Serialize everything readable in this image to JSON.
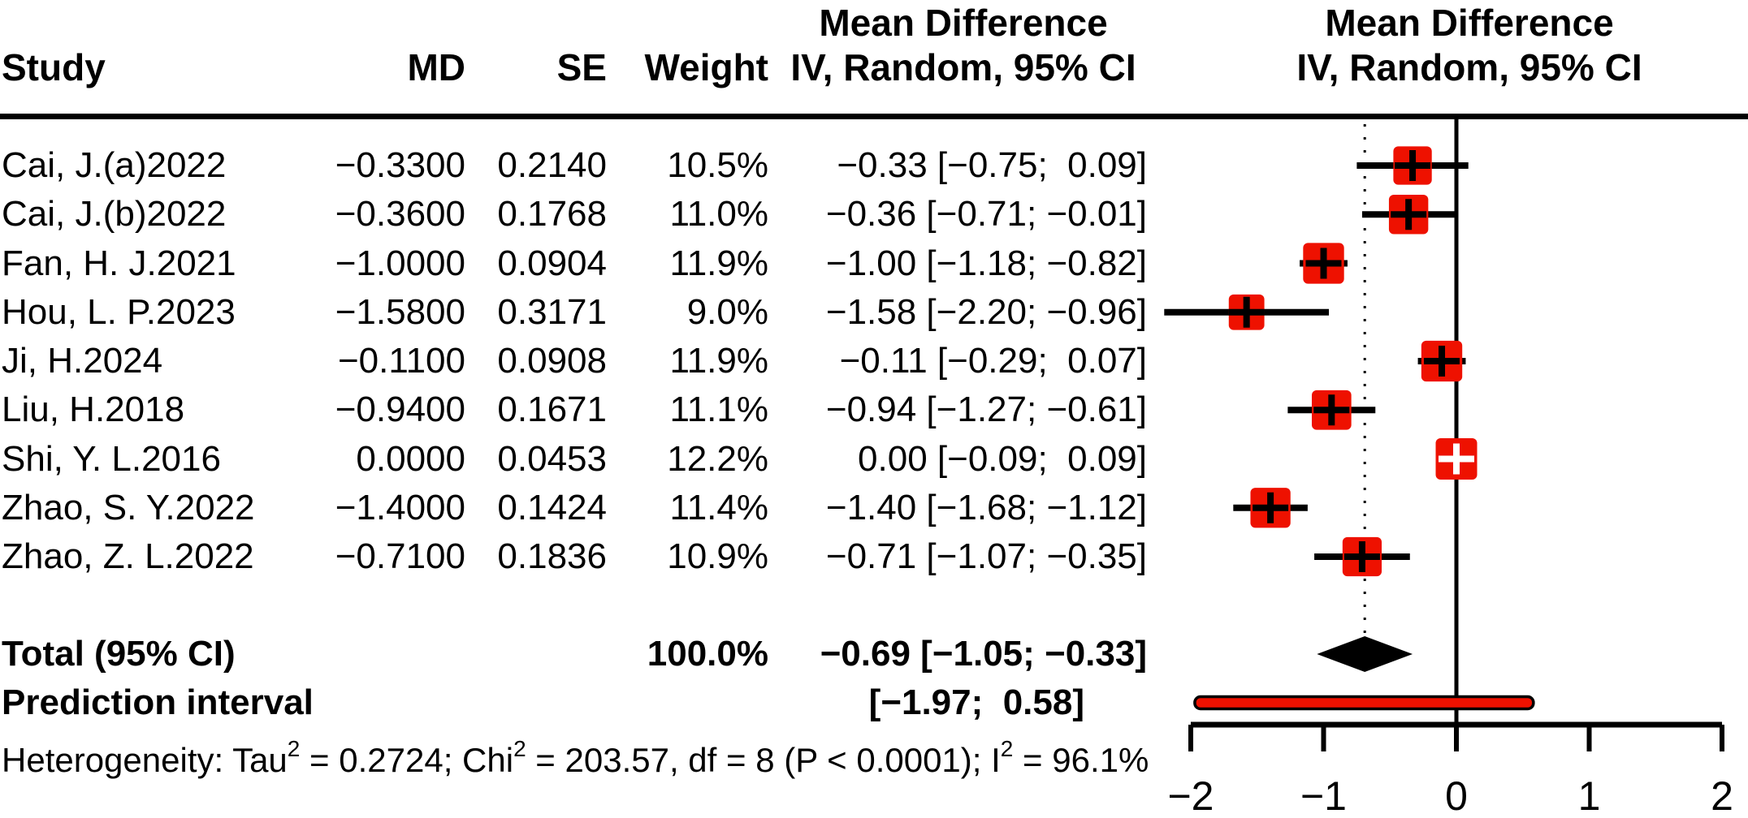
{
  "columns": {
    "study": "Study",
    "md": "MD",
    "se": "SE",
    "weight": "Weight"
  },
  "ci_header": {
    "line1": "Mean Difference",
    "line2": "IV, Random, 95% CI"
  },
  "plot_header": {
    "line1": "Mean Difference",
    "line2": "IV, Random, 95% CI"
  },
  "chart_data": {
    "type": "forest",
    "effect_measure": "Mean Difference",
    "model": "IV, Random, 95% CI",
    "studies": [
      {
        "study": "Cai, J.(a)2022",
        "md_text": "−0.3300",
        "se_text": "0.2140",
        "weight_text": "10.5%",
        "ci_text": "−0.33 [−0.75;  0.09]",
        "md": -0.33,
        "lo": -0.75,
        "hi": 0.09,
        "weight_pct": 10.5,
        "marker_color": "#000000"
      },
      {
        "study": "Cai, J.(b)2022",
        "md_text": "−0.3600",
        "se_text": "0.1768",
        "weight_text": "11.0%",
        "ci_text": "−0.36 [−0.71; −0.01]",
        "md": -0.36,
        "lo": -0.71,
        "hi": -0.01,
        "weight_pct": 11.0,
        "marker_color": "#000000"
      },
      {
        "study": "Fan, H. J.2021",
        "md_text": "−1.0000",
        "se_text": "0.0904",
        "weight_text": "11.9%",
        "ci_text": "−1.00 [−1.18; −0.82]",
        "md": -1.0,
        "lo": -1.18,
        "hi": -0.82,
        "weight_pct": 11.9,
        "marker_color": "#000000"
      },
      {
        "study": "Hou, L. P.2023",
        "md_text": "−1.5800",
        "se_text": "0.3171",
        "weight_text": "9.0%",
        "ci_text": "−1.58 [−2.20; −0.96]",
        "md": -1.58,
        "lo": -2.2,
        "hi": -0.96,
        "weight_pct": 9.0,
        "marker_color": "#000000"
      },
      {
        "study": "Ji, H.2024",
        "md_text": "−0.1100",
        "se_text": "0.0908",
        "weight_text": "11.9%",
        "ci_text": "−0.11 [−0.29;  0.07]",
        "md": -0.11,
        "lo": -0.29,
        "hi": 0.07,
        "weight_pct": 11.9,
        "marker_color": "#000000"
      },
      {
        "study": "Liu, H.2018",
        "md_text": "−0.9400",
        "se_text": "0.1671",
        "weight_text": "11.1%",
        "ci_text": "−0.94 [−1.27; −0.61]",
        "md": -0.94,
        "lo": -1.27,
        "hi": -0.61,
        "weight_pct": 11.1,
        "marker_color": "#000000"
      },
      {
        "study": "Shi, Y. L.2016",
        "md_text": "0.0000",
        "se_text": "0.0453",
        "weight_text": "12.2%",
        "ci_text": " 0.00 [−0.09;  0.09]",
        "md": 0.0,
        "lo": -0.09,
        "hi": 0.09,
        "weight_pct": 12.2,
        "marker_color": "#FFFFFF"
      },
      {
        "study": "Zhao, S. Y.2022",
        "md_text": "−1.4000",
        "se_text": "0.1424",
        "weight_text": "11.4%",
        "ci_text": "−1.40 [−1.68; −1.12]",
        "md": -1.4,
        "lo": -1.68,
        "hi": -1.12,
        "weight_pct": 11.4,
        "marker_color": "#000000"
      },
      {
        "study": "Zhao, Z. L.2022",
        "md_text": "−0.7100",
        "se_text": "0.1836",
        "weight_text": "10.9%",
        "ci_text": "−0.71 [−1.07; −0.35]",
        "md": -0.71,
        "lo": -1.07,
        "hi": -0.35,
        "weight_pct": 10.9,
        "marker_color": "#000000"
      }
    ],
    "total": {
      "label": "Total (95% CI)",
      "weight_text": "100.0%",
      "ci_text": "−0.69 [−1.05; −0.33]",
      "md": -0.69,
      "lo": -1.05,
      "hi": -0.33
    },
    "prediction": {
      "label": "Prediction interval",
      "ci_text": "[−1.97;  0.58]",
      "lo": -1.97,
      "hi": 0.58
    },
    "heterogeneity_segments": [
      {
        "text": "Heterogeneity: Tau"
      },
      {
        "sup": "2"
      },
      {
        "text": " = 0.2724; Chi"
      },
      {
        "sup": "2"
      },
      {
        "text": " = 203.57, df = 8 (P < 0.0001); I"
      },
      {
        "sup": "2"
      },
      {
        "text": " = 96.1%"
      }
    ],
    "axis": {
      "xmin": -2,
      "xmax": 2,
      "tick_values": [
        -2,
        -1,
        0,
        1,
        2
      ],
      "tick_labels": [
        "−2",
        "−1",
        "0",
        "1",
        "2"
      ]
    },
    "colors": {
      "square": "#EE1100",
      "diamond": "#000000",
      "prediction_fill": "#EE1100",
      "line": "#000000"
    }
  }
}
